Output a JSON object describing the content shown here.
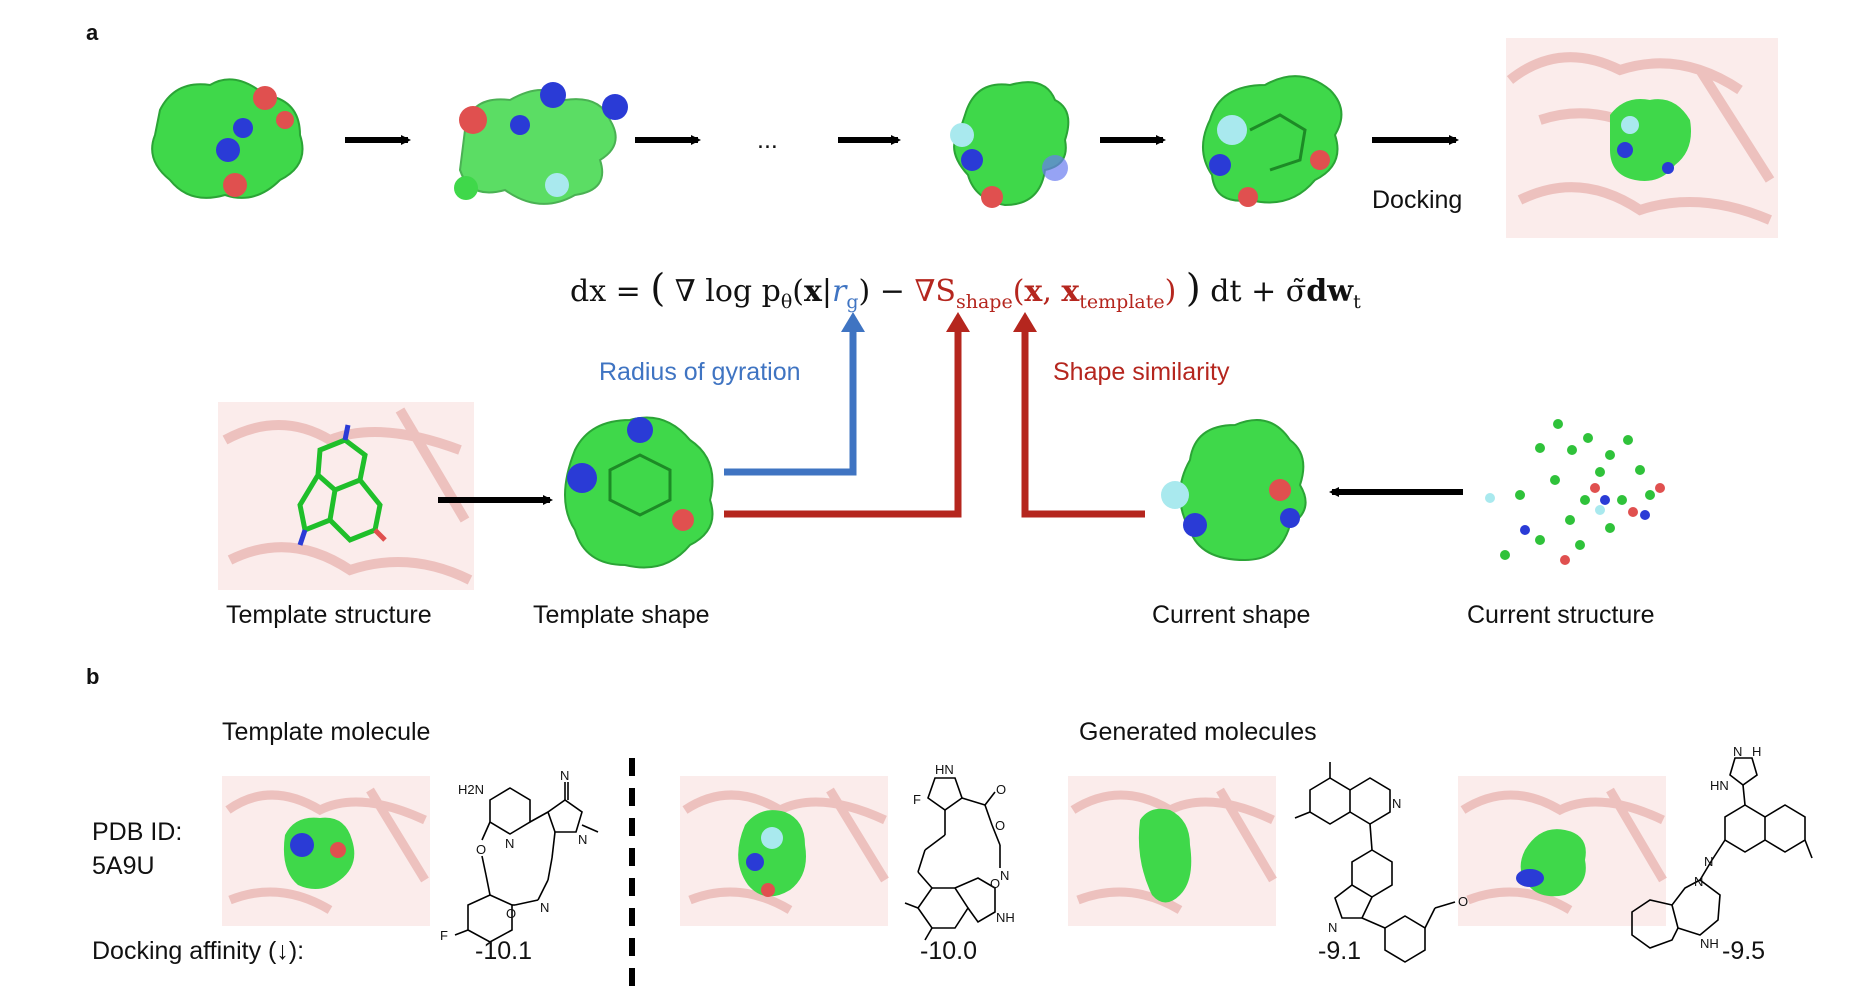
{
  "panel_a": {
    "letter": "a",
    "ellipsis": "...",
    "docking_label": "Docking",
    "equation": {
      "lhs": "dx",
      "grad_log": "∇ log p",
      "theta": "θ",
      "x": "x",
      "rg": "r",
      "rg_sub": "g",
      "grad_s": "∇S",
      "s_sub": "shape",
      "x_template": "x",
      "template_sub": "template",
      "dt": "dt",
      "sigma": "σ̃",
      "dw": "dw",
      "t_sub": "t"
    },
    "radius_label": "Radius of gyration",
    "shape_similarity_label": "Shape similarity",
    "template_structure_label": "Template structure",
    "template_shape_label": "Template shape",
    "current_shape_label": "Current shape",
    "current_structure_label": "Current structure"
  },
  "panel_b": {
    "letter": "b",
    "template_molecule_label": "Template molecule",
    "generated_molecules_label": "Generated molecules",
    "pdb_label": "PDB ID:",
    "pdb_id": "5A9U",
    "docking_affinity_label": "Docking affinity (↓):",
    "affinities": [
      "-10.1",
      "-10.0",
      "-9.1",
      "-9.5"
    ],
    "template_chem_labels": {
      "nh2": "H2N",
      "n": "N",
      "cn": "N",
      "o": "O",
      "f": "F",
      "n2": "N",
      "o2": "O",
      "n3": "N"
    },
    "gen1_chem_labels": {
      "hn": "HN",
      "f": "F",
      "o": "O",
      "o2": "O",
      "o3": "O",
      "n": "N",
      "nh": "NH"
    },
    "gen2_chem_labels": {
      "n": "N",
      "n2": "N",
      "o": "O"
    },
    "gen3_chem_labels": {
      "hn": "HN",
      "nh": "N",
      "h": "H",
      "n": "N",
      "n2": "N",
      "nh2": "NH"
    }
  },
  "colors": {
    "surface_green": "#3fd84a",
    "atom_blue": "#2a3bd6",
    "atom_red": "#e0504f",
    "atom_cyan": "#a9e9ee",
    "protein_pink": "#f0c6c4",
    "arrow_black": "#000000",
    "arrow_blue": "#3f74c2",
    "arrow_red": "#b5261e"
  }
}
